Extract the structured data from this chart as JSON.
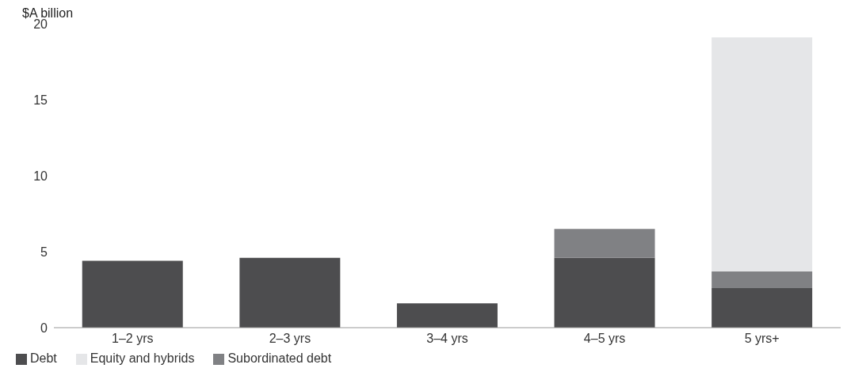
{
  "chart_data": {
    "type": "bar",
    "ylabel": "$A billion",
    "stacked": true,
    "categories": [
      "1–2 yrs",
      "2–3 yrs",
      "3–4 yrs",
      "4–5 yrs",
      "5 yrs+"
    ],
    "series": [
      {
        "name": "Debt",
        "color": "#4d4d4f",
        "values": [
          4.4,
          4.6,
          1.6,
          4.6,
          2.6
        ]
      },
      {
        "name": "Subordinated debt",
        "color": "#808184",
        "values": [
          0,
          0,
          0,
          1.9,
          1.1
        ]
      },
      {
        "name": "Equity and hybrids",
        "color": "#e5e6e8",
        "values": [
          0,
          0,
          0,
          0,
          15.4
        ]
      }
    ],
    "ylim": [
      0,
      20
    ],
    "yticks": [
      0,
      5,
      10,
      15,
      20
    ],
    "grid": false,
    "legend": "bottom left"
  }
}
